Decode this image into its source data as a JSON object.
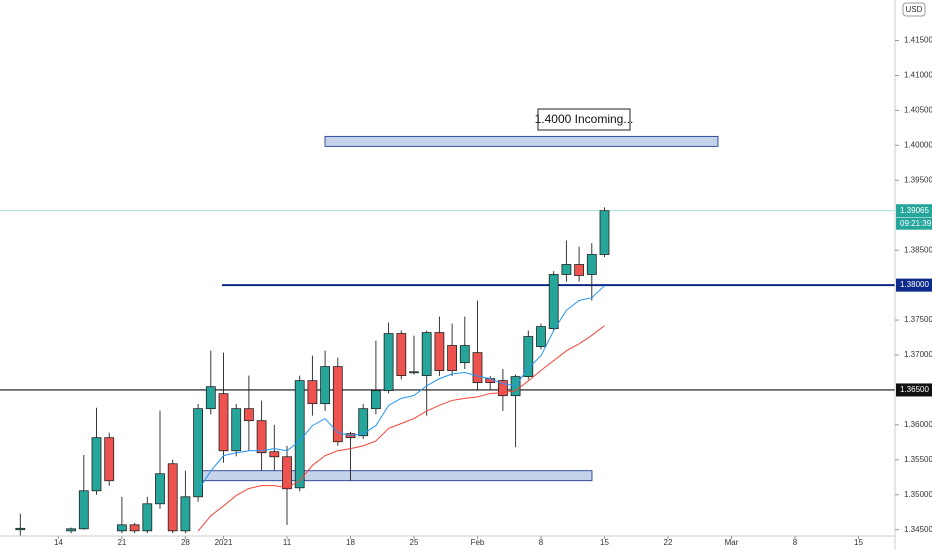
{
  "chart_data": {
    "type": "candlestick",
    "currency": "USD",
    "annotation": "1.4000 Incoming...",
    "countdown": "09:21:39",
    "up_color": "#26a69a",
    "down_color": "#ef5350",
    "ylim": [
      1.3441,
      1.4208
    ],
    "yticks": [
      {
        "value": 1.345,
        "label": "1.34500"
      },
      {
        "value": 1.35,
        "label": "1.35000"
      },
      {
        "value": 1.355,
        "label": "1.35500"
      },
      {
        "value": 1.36,
        "label": "1.36000"
      },
      {
        "value": 1.37,
        "label": "1.37000"
      },
      {
        "value": 1.375,
        "label": "1.37500"
      },
      {
        "value": 1.385,
        "label": "1.38500"
      },
      {
        "value": 1.395,
        "label": "1.39500"
      },
      {
        "value": 1.4,
        "label": "1.40000"
      },
      {
        "value": 1.405,
        "label": "1.40500"
      },
      {
        "value": 1.41,
        "label": "1.41000"
      },
      {
        "value": 1.415,
        "label": "1.41500"
      }
    ],
    "categories": [
      null,
      null,
      null,
      "14",
      null,
      null,
      null,
      null,
      "21",
      null,
      null,
      null,
      null,
      "28",
      null,
      null,
      "2021",
      null,
      null,
      null,
      null,
      "11",
      null,
      null,
      null,
      null,
      "18",
      null,
      null,
      null,
      null,
      "25",
      null,
      null,
      null,
      null,
      "Feb",
      null,
      null,
      null,
      null,
      "8",
      null,
      null,
      null,
      null,
      "15",
      null,
      null,
      null,
      null,
      "22",
      null,
      null,
      null,
      null,
      "Mar",
      null,
      null,
      null,
      null,
      "8",
      null,
      null,
      null,
      null,
      "15",
      null,
      null,
      null
    ],
    "open": [
      1.345,
      null,
      null,
      null,
      1.34484,
      1.34513,
      1.35057,
      1.35817,
      1.34484,
      1.3457,
      1.34484,
      1.34871,
      1.35444,
      1.34484,
      1.34971,
      1.36232,
      1.36447,
      1.3563,
      1.36232,
      1.3606,
      1.35616,
      1.35544,
      1.351,
      1.36633,
      1.36304,
      1.36834,
      1.35874,
      1.35845,
      1.36232,
      1.3649,
      1.37307,
      1.36748,
      1.36705,
      1.37321,
      1.37135,
      1.36891,
      1.37034,
      1.36662,
      1.36633,
      1.36418,
      1.36691,
      1.3712,
      1.37378,
      1.38152,
      1.38295,
      1.38152,
      1.38438,
      null,
      null,
      null,
      null,
      null,
      null,
      null,
      null,
      null,
      null,
      null,
      null,
      null,
      null,
      null,
      null,
      null,
      null,
      null,
      null,
      null,
      null,
      null
    ],
    "high": [
      1.3473,
      null,
      null,
      null,
      1.3453,
      1.3557,
      1.36246,
      1.35888,
      1.34971,
      1.346,
      1.34971,
      1.36203,
      1.355,
      1.35344,
      1.363,
      1.37063,
      1.37034,
      1.363,
      1.36705,
      1.36347,
      1.36,
      1.357,
      1.36705,
      1.36991,
      1.37063,
      1.36963,
      1.359,
      1.363,
      1.37206,
      1.37464,
      1.3735,
      1.37278,
      1.3735,
      1.3755,
      1.3745,
      1.3755,
      1.37779,
      1.367,
      1.368,
      1.3672,
      1.3735,
      1.3745,
      1.382,
      1.38639,
      1.3855,
      1.386,
      1.39112,
      null,
      null,
      null,
      null,
      null,
      null,
      null,
      null,
      null,
      null,
      null,
      null,
      null,
      null,
      null,
      null,
      null,
      null,
      null,
      null,
      null,
      null,
      null
    ],
    "low": [
      1.3441,
      null,
      null,
      null,
      1.3445,
      1.345,
      1.35,
      1.35129,
      1.3445,
      1.3445,
      1.3445,
      1.348,
      1.3445,
      1.3445,
      1.349,
      1.3615,
      1.35458,
      1.3555,
      1.3563,
      1.35344,
      1.3535,
      1.3457,
      1.3505,
      1.36132,
      1.362,
      1.35702,
      1.35201,
      1.358,
      1.3615,
      1.3645,
      1.3665,
      1.3672,
      1.36132,
      1.367,
      1.367,
      1.368,
      1.365,
      1.365,
      1.362,
      1.3568,
      1.3665,
      1.3708,
      1.3735,
      1.3805,
      1.3805,
      1.37779,
      1.384,
      null,
      null,
      null,
      null,
      null,
      null,
      null,
      null,
      null,
      null,
      null,
      null,
      null,
      null,
      null,
      null,
      null,
      null,
      null,
      null,
      null,
      null,
      null
    ],
    "close": [
      1.3452,
      null,
      null,
      null,
      1.34513,
      1.35057,
      1.35817,
      1.35201,
      1.3457,
      1.34484,
      1.34871,
      1.35301,
      1.34484,
      1.34971,
      1.36232,
      1.36547,
      1.3563,
      1.36232,
      1.3606,
      1.35602,
      1.35544,
      1.35086,
      1.36633,
      1.36304,
      1.36834,
      1.35759,
      1.35817,
      1.36232,
      1.3649,
      1.37307,
      1.36705,
      1.3676,
      1.37321,
      1.36777,
      1.36777,
      1.37135,
      1.36605,
      1.36605,
      1.36418,
      1.36691,
      1.37264,
      1.37407,
      1.38152,
      1.38295,
      1.38138,
      1.38438,
      1.39065,
      null,
      null,
      null,
      null,
      null,
      null,
      null,
      null,
      null,
      null,
      null,
      null,
      null,
      null,
      null,
      null,
      null,
      null,
      null,
      null,
      null,
      null,
      null
    ],
    "lines": [
      {
        "color": "#2196f3",
        "values": [
          null,
          null,
          null,
          null,
          null,
          null,
          null,
          null,
          null,
          null,
          null,
          null,
          null,
          null,
          1.3506,
          1.3534,
          1.3556,
          1.356,
          1.3563,
          1.3563,
          1.3566,
          1.3563,
          1.3577,
          1.3599,
          1.3609,
          1.3589,
          1.3585,
          1.3587,
          1.3599,
          1.3628,
          1.3638,
          1.3642,
          1.3656,
          1.3666,
          1.3673,
          1.3675,
          1.367,
          1.3666,
          1.3659,
          1.3656,
          1.3681,
          1.3699,
          1.3735,
          1.3764,
          1.3778,
          1.3782,
          1.3799,
          null,
          null,
          null,
          null,
          null,
          null,
          null,
          null,
          null,
          null,
          null,
          null,
          null,
          null,
          null,
          null,
          null,
          null,
          null,
          null,
          null,
          null,
          null
        ]
      },
      {
        "color": "#f44336",
        "values": [
          null,
          null,
          null,
          null,
          null,
          null,
          null,
          null,
          null,
          null,
          null,
          null,
          null,
          null,
          1.3448,
          1.347,
          1.3484,
          1.3499,
          1.3509,
          1.3513,
          1.3513,
          1.351,
          1.352,
          1.3542,
          1.3556,
          1.3563,
          1.3566,
          1.357,
          1.3577,
          1.3595,
          1.3602,
          1.3609,
          1.362,
          1.3628,
          1.3635,
          1.3638,
          1.364,
          1.3645,
          1.3646,
          1.3649,
          1.3663,
          1.3678,
          1.3692,
          1.3706,
          1.3716,
          1.3728,
          1.3742,
          null,
          null,
          null,
          null,
          null,
          null,
          null,
          null,
          null,
          null,
          null,
          null,
          null,
          null,
          null,
          null,
          null,
          null,
          null,
          null,
          null,
          null,
          null
        ]
      }
    ],
    "levels": [
      {
        "value": 1.38,
        "label": "1.38000",
        "color": "#0d2a8a"
      },
      {
        "value": 1.365,
        "label": "1.36500",
        "color": "#111111"
      }
    ],
    "zones": [
      {
        "low": 1.39986,
        "high": 1.40129
      },
      {
        "low": 1.35201,
        "high": 1.35344
      }
    ]
  }
}
